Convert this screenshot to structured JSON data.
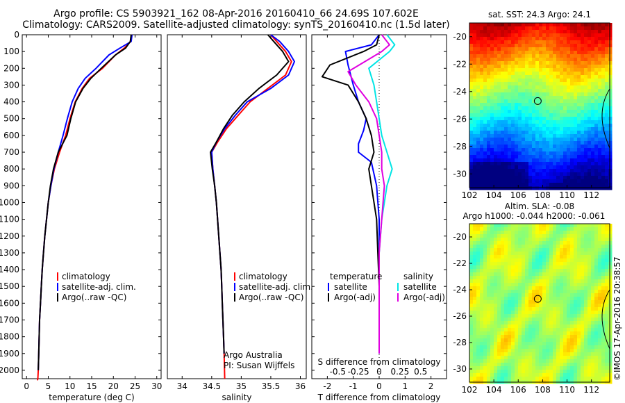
{
  "header": {
    "line1": "Argo profile: CS 5903921_162 08-Apr-2016 20160410_66 24.69S 107.602E",
    "line2": "Climatology: CARS2009. Satellite-adjusted climatology: synTS_20160410.nc (1.5d later)"
  },
  "chart_data": [
    {
      "type": "line",
      "xlabel": "temperature (deg C)",
      "ylabel": "",
      "xlim": [
        -1,
        31
      ],
      "ylim": [
        2050,
        0
      ],
      "xticks": [
        0,
        5,
        10,
        15,
        20,
        25,
        30
      ],
      "yticks": [
        0,
        100,
        200,
        300,
        400,
        500,
        600,
        700,
        800,
        900,
        1000,
        1100,
        1200,
        1300,
        1400,
        1500,
        1600,
        1700,
        1800,
        1900,
        2000
      ],
      "legend": [
        "climatology",
        "satellite-adj. clim.",
        "Argo(..raw -QC)"
      ],
      "legend_colors": [
        "#ff0000",
        "#0000ff",
        "#000000"
      ],
      "series": [
        {
          "name": "climatology",
          "color": "#ff0000",
          "x": [
            24.2,
            24.0,
            22.5,
            20.5,
            17.5,
            14.5,
            12.8,
            11.2,
            10.0,
            9.0,
            7.6,
            6.4,
            5.6,
            5.0,
            4.6,
            4.2,
            3.9,
            3.6,
            3.4,
            3.2,
            3.0,
            2.9,
            2.8,
            2.7,
            2.6,
            2.5
          ],
          "y": [
            0,
            40,
            80,
            120,
            200,
            260,
            320,
            400,
            500,
            600,
            700,
            800,
            900,
            1000,
            1100,
            1200,
            1300,
            1400,
            1500,
            1600,
            1700,
            1800,
            1900,
            2000,
            2050,
            2060
          ]
        },
        {
          "name": "satellite-adj. clim.",
          "color": "#0000ff",
          "x": [
            24.3,
            24.1,
            21.5,
            19.0,
            16.0,
            13.5,
            11.9,
            10.5,
            9.4,
            8.4,
            7.3,
            6.3,
            5.6,
            5.0,
            4.6,
            4.2,
            3.9,
            3.6,
            3.4,
            3.2,
            3.0,
            2.9,
            2.8,
            2.7
          ],
          "y": [
            0,
            40,
            80,
            120,
            200,
            260,
            320,
            400,
            500,
            600,
            700,
            800,
            900,
            1000,
            1100,
            1200,
            1300,
            1400,
            1500,
            1600,
            1700,
            1800,
            1900,
            2000
          ]
        },
        {
          "name": "Argo(..raw -QC)",
          "color": "#000000",
          "x": [
            24.1,
            23.9,
            22.8,
            20.5,
            17.2,
            14.8,
            13.0,
            11.3,
            10.2,
            9.3,
            7.3,
            6.2,
            5.5,
            5.0,
            4.6,
            4.2,
            3.9,
            3.6,
            3.4,
            3.2,
            3.0,
            2.9,
            2.8,
            2.7
          ],
          "y": [
            0,
            40,
            80,
            120,
            200,
            260,
            320,
            400,
            500,
            600,
            700,
            800,
            900,
            1000,
            1100,
            1200,
            1300,
            1400,
            1500,
            1600,
            1700,
            1800,
            1900,
            2000
          ]
        }
      ]
    },
    {
      "type": "line",
      "xlabel": "salinity",
      "ylabel": "",
      "xlim": [
        33.75,
        36.1
      ],
      "ylim": [
        2050,
        0
      ],
      "xticks": [
        34,
        34.5,
        35,
        35.5,
        36
      ],
      "xticklabels": [
        "34",
        "34.5",
        "35",
        "35.5",
        "36"
      ],
      "legend": [
        "climatology",
        "satellite-adj. clim.",
        "Argo(..raw -QC)"
      ],
      "legend_colors": [
        "#ff0000",
        "#0000ff",
        "#000000"
      ],
      "annotations": [
        "Argo Australia",
        "PI: Susan Wijffels"
      ],
      "series": [
        {
          "name": "climatology",
          "color": "#ff0000",
          "x": [
            35.5,
            35.6,
            35.75,
            35.85,
            35.75,
            35.45,
            35.15,
            34.95,
            34.75,
            34.6,
            34.5,
            34.52,
            34.55,
            34.58,
            34.6,
            34.62,
            34.64,
            34.66,
            34.67,
            34.68,
            34.69,
            34.7,
            34.71,
            34.72
          ],
          "y": [
            0,
            40,
            100,
            160,
            240,
            320,
            400,
            480,
            560,
            640,
            700,
            800,
            900,
            1000,
            1100,
            1200,
            1300,
            1400,
            1500,
            1600,
            1700,
            1800,
            1900,
            2050
          ]
        },
        {
          "name": "satellite-adj. clim.",
          "color": "#0000ff",
          "x": [
            35.5,
            35.65,
            35.8,
            35.9,
            35.8,
            35.5,
            35.1,
            34.9,
            34.72,
            34.58,
            34.5,
            34.52,
            34.55,
            34.58,
            34.6,
            34.62,
            34.64,
            34.66,
            34.67,
            34.68,
            34.69,
            34.7,
            34.71
          ],
          "y": [
            0,
            40,
            100,
            160,
            240,
            320,
            400,
            480,
            560,
            640,
            700,
            800,
            900,
            1000,
            1100,
            1200,
            1300,
            1400,
            1500,
            1600,
            1700,
            1800,
            1900
          ]
        },
        {
          "name": "Argo(..raw -QC)",
          "color": "#000000",
          "x": [
            35.45,
            35.55,
            35.7,
            35.8,
            35.6,
            35.3,
            35.05,
            34.85,
            34.7,
            34.58,
            34.48,
            34.51,
            34.55,
            34.58,
            34.6,
            34.62,
            34.64,
            34.66,
            34.67,
            34.68,
            34.69,
            34.7,
            34.71
          ],
          "y": [
            0,
            40,
            100,
            160,
            240,
            320,
            400,
            480,
            560,
            640,
            700,
            800,
            900,
            1000,
            1100,
            1200,
            1300,
            1400,
            1500,
            1600,
            1700,
            1800,
            1900
          ]
        }
      ]
    },
    {
      "type": "line",
      "xlabel_top": "S difference from climatology",
      "xlabel": "T difference from climatology",
      "xlim": [
        -2.6,
        2.6
      ],
      "ylim": [
        2050,
        0
      ],
      "xticks_T": [
        -2,
        -1,
        0,
        1,
        2
      ],
      "xticks_S": [
        -0.5,
        -0.25,
        0,
        0.25,
        0.5
      ],
      "xticklabels_S": [
        "-0.5",
        "-0.25",
        "0",
        "0.25",
        "0.5"
      ],
      "legend_left_title": "temperature",
      "legend_right_title": "salinity",
      "legend": [
        "satellite",
        "Argo(-adj)",
        "satellite",
        "Argo(-adj)"
      ],
      "legend_colors": [
        "#0000ff",
        "#000000",
        "#00e5e5",
        "#e000e0"
      ],
      "series": [
        {
          "name": "temperature satellite",
          "color": "#0000ff",
          "x": [
            0.0,
            -0.3,
            -1.3,
            -1.2,
            -1.0,
            -0.8,
            -0.5,
            -0.6,
            -0.8,
            -0.8,
            -0.3,
            -0.1,
            0.0,
            0.0,
            0.0,
            0.0,
            0.0,
            0.0
          ],
          "y": [
            0,
            60,
            100,
            180,
            300,
            400,
            500,
            570,
            650,
            700,
            760,
            900,
            1100,
            1300,
            1500,
            1700,
            1850,
            1900
          ]
        },
        {
          "name": "temperature Argo(-adj)",
          "color": "#000000",
          "x": [
            0.0,
            -0.1,
            -0.6,
            -1.9,
            -2.2,
            -1.2,
            -0.8,
            -0.5,
            -0.3,
            -0.2,
            -0.4,
            -0.3,
            -0.1,
            -0.05,
            0.0,
            0.0,
            0.0,
            0.0
          ],
          "y": [
            0,
            60,
            100,
            180,
            250,
            300,
            400,
            500,
            600,
            700,
            800,
            900,
            1100,
            1300,
            1500,
            1700,
            1850,
            1900
          ]
        },
        {
          "name": "salinity satellite",
          "color": "#00e5e5",
          "x": [
            0.3,
            0.6,
            0.4,
            -0.4,
            -0.2,
            -0.1,
            0.0,
            0.1,
            0.3,
            0.5,
            0.3,
            0.1,
            0.0,
            0.0,
            0.0,
            0.0,
            0.0
          ],
          "y": [
            0,
            60,
            100,
            200,
            300,
            400,
            500,
            600,
            700,
            800,
            900,
            1100,
            1300,
            1500,
            1700,
            1850,
            1900
          ]
        },
        {
          "name": "salinity Argo(-adj)",
          "color": "#e000e0",
          "x": [
            0.1,
            0.4,
            0.1,
            -1.2,
            -0.9,
            -0.4,
            -0.1,
            0.0,
            0.1,
            0.1,
            0.2,
            0.1,
            0.0,
            0.0,
            0.0,
            0.0,
            0.0
          ],
          "y": [
            0,
            60,
            100,
            220,
            300,
            400,
            500,
            600,
            700,
            800,
            900,
            1100,
            1300,
            1500,
            1700,
            1850,
            1900
          ]
        }
      ]
    },
    {
      "type": "heatmap",
      "title": "sat. SST: 24.3  Argo: 24.1",
      "xlim": [
        102,
        113.5
      ],
      "ylim": [
        -31,
        -19
      ],
      "xticks": [
        102,
        104,
        106,
        108,
        110,
        112
      ],
      "yticks": [
        -20,
        -22,
        -24,
        -26,
        -28,
        -30
      ],
      "marker": {
        "lon": 107.6,
        "lat": -24.69
      },
      "colormap": "jet"
    },
    {
      "type": "heatmap",
      "title": "Altim. SLA: -0.08",
      "subtitle": "Argo h1000: -0.044  h2000: -0.061",
      "xlim": [
        102,
        113.5
      ],
      "ylim": [
        -31,
        -19
      ],
      "xticks": [
        102,
        104,
        106,
        108,
        110,
        112
      ],
      "yticks": [
        -20,
        -22,
        -24,
        -26,
        -28,
        -30
      ],
      "marker": {
        "lon": 107.6,
        "lat": -24.69
      },
      "colormap": "jet"
    }
  ],
  "credit": "©IMOS 17-Apr-2016 20:38:57",
  "colors": {
    "red": "#ff0000",
    "blue": "#0000ff",
    "black": "#000000",
    "cyan": "#00e5e5",
    "magenta": "#e000e0"
  }
}
